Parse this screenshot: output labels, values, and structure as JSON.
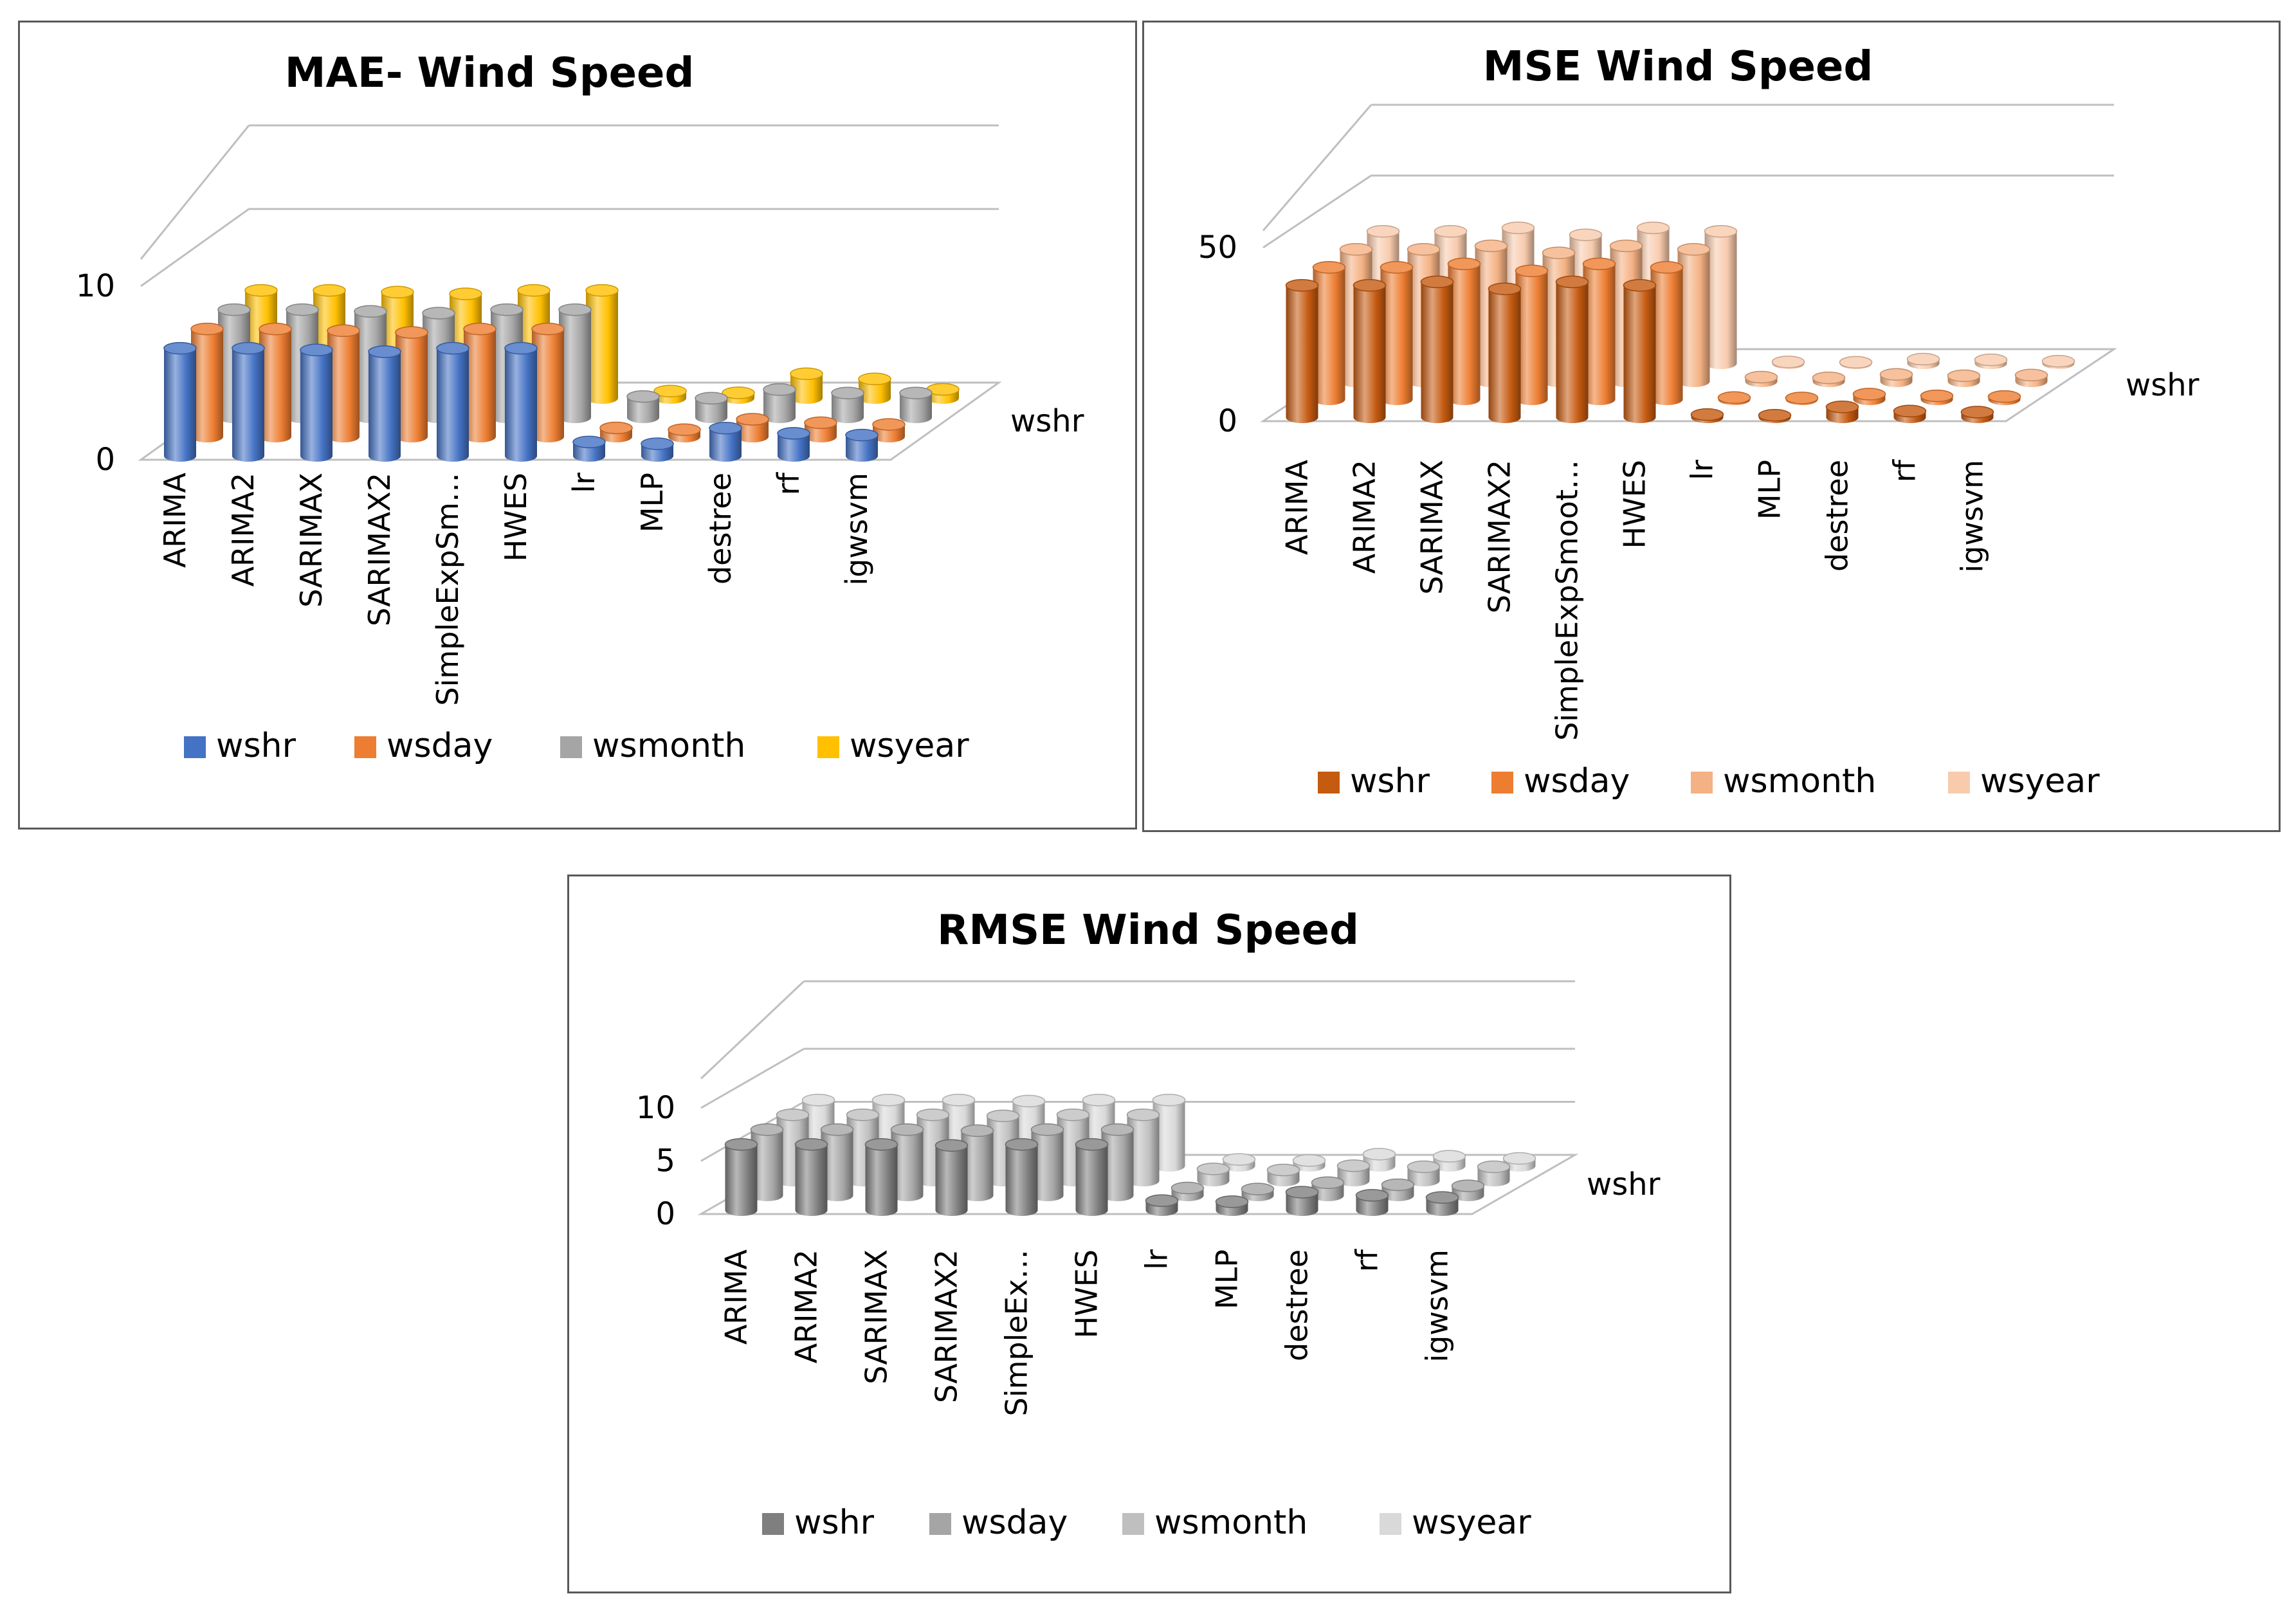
{
  "chart_data": [
    {
      "type": "bar",
      "title": "MAE- Wind Speed",
      "ylim": [
        0,
        10
      ],
      "yticks": [
        "0",
        "10"
      ],
      "depth_label": "wshr",
      "categories": [
        "ARIMA",
        "ARIMA2",
        "SARIMAX",
        "SARIMAX2",
        "SimpleExpSm…",
        "HWES",
        "lr",
        "MLP",
        "destree",
        "rf",
        "igwsvm"
      ],
      "series": [
        {
          "name": "wshr",
          "color": "#4472C4",
          "values": [
            6.2,
            6.2,
            6.1,
            6.0,
            6.2,
            6.2,
            0.8,
            0.7,
            1.6,
            1.3,
            1.2
          ]
        },
        {
          "name": "wsday",
          "color": "#ED7D31",
          "values": [
            6.2,
            6.2,
            6.1,
            6.0,
            6.2,
            6.2,
            0.5,
            0.4,
            1.0,
            0.8,
            0.7
          ]
        },
        {
          "name": "wsmonth",
          "color": "#A5A5A5",
          "values": [
            6.2,
            6.2,
            6.1,
            6.0,
            6.2,
            6.2,
            1.2,
            1.1,
            1.6,
            1.4,
            1.4
          ]
        },
        {
          "name": "wsyear",
          "color": "#FFC000",
          "values": [
            6.2,
            6.2,
            6.1,
            6.0,
            6.2,
            6.2,
            0.4,
            0.3,
            1.4,
            1.1,
            0.5
          ]
        }
      ],
      "legend": "bottom"
    },
    {
      "type": "bar",
      "title": "MSE Wind Speed",
      "ylim": [
        0,
        50
      ],
      "yticks": [
        "0",
        "50"
      ],
      "depth_label": "wshr",
      "categories": [
        "ARIMA",
        "ARIMA2",
        "SARIMAX",
        "SARIMAX2",
        "SimpleExpSmoot…",
        "HWES",
        "lr",
        "MLP",
        "destree",
        "rf",
        "igwsvm"
      ],
      "series": [
        {
          "name": "wshr",
          "color": "#C55A11",
          "values": [
            38,
            38,
            39,
            37,
            39,
            38,
            0.8,
            0.6,
            3.0,
            1.8,
            1.5
          ]
        },
        {
          "name": "wsday",
          "color": "#ED7D31",
          "values": [
            38,
            38,
            39,
            37,
            39,
            38,
            0.5,
            0.4,
            1.5,
            1.0,
            0.8
          ]
        },
        {
          "name": "wsmonth",
          "color": "#F4B183",
          "values": [
            38,
            38,
            39,
            37,
            39,
            38,
            1.2,
            1.0,
            2.0,
            1.6,
            1.8
          ]
        },
        {
          "name": "wsyear",
          "color": "#F8CBAD",
          "values": [
            38,
            38,
            39,
            37,
            39,
            38,
            0.4,
            0.3,
            1.2,
            1.0,
            0.6
          ]
        }
      ],
      "legend": "bottom"
    },
    {
      "type": "bar",
      "title": "RMSE Wind Speed",
      "ylim": [
        0,
        10
      ],
      "yticks": [
        "0",
        "5",
        "10"
      ],
      "depth_label": "wshr",
      "categories": [
        "ARIMA",
        "ARIMA2",
        "SARIMAX",
        "SARIMAX2",
        "SimpleEx…",
        "HWES",
        "lr",
        "MLP",
        "destree",
        "rf",
        "igwsvm"
      ],
      "series": [
        {
          "name": "wshr",
          "color": "#7F7F7F",
          "values": [
            6.2,
            6.2,
            6.2,
            6.1,
            6.2,
            6.2,
            0.9,
            0.8,
            1.7,
            1.4,
            1.2
          ]
        },
        {
          "name": "wsday",
          "color": "#A5A5A5",
          "values": [
            6.2,
            6.2,
            6.2,
            6.1,
            6.2,
            6.2,
            0.7,
            0.6,
            1.2,
            1.0,
            0.9
          ]
        },
        {
          "name": "wsmonth",
          "color": "#BFBFBF",
          "values": [
            6.2,
            6.2,
            6.2,
            6.1,
            6.2,
            6.2,
            1.1,
            1.0,
            1.4,
            1.3,
            1.3
          ]
        },
        {
          "name": "wsyear",
          "color": "#D9D9D9",
          "values": [
            6.2,
            6.2,
            6.2,
            6.1,
            6.2,
            6.2,
            0.6,
            0.5,
            1.1,
            0.9,
            0.7
          ]
        }
      ],
      "legend": "bottom"
    }
  ]
}
